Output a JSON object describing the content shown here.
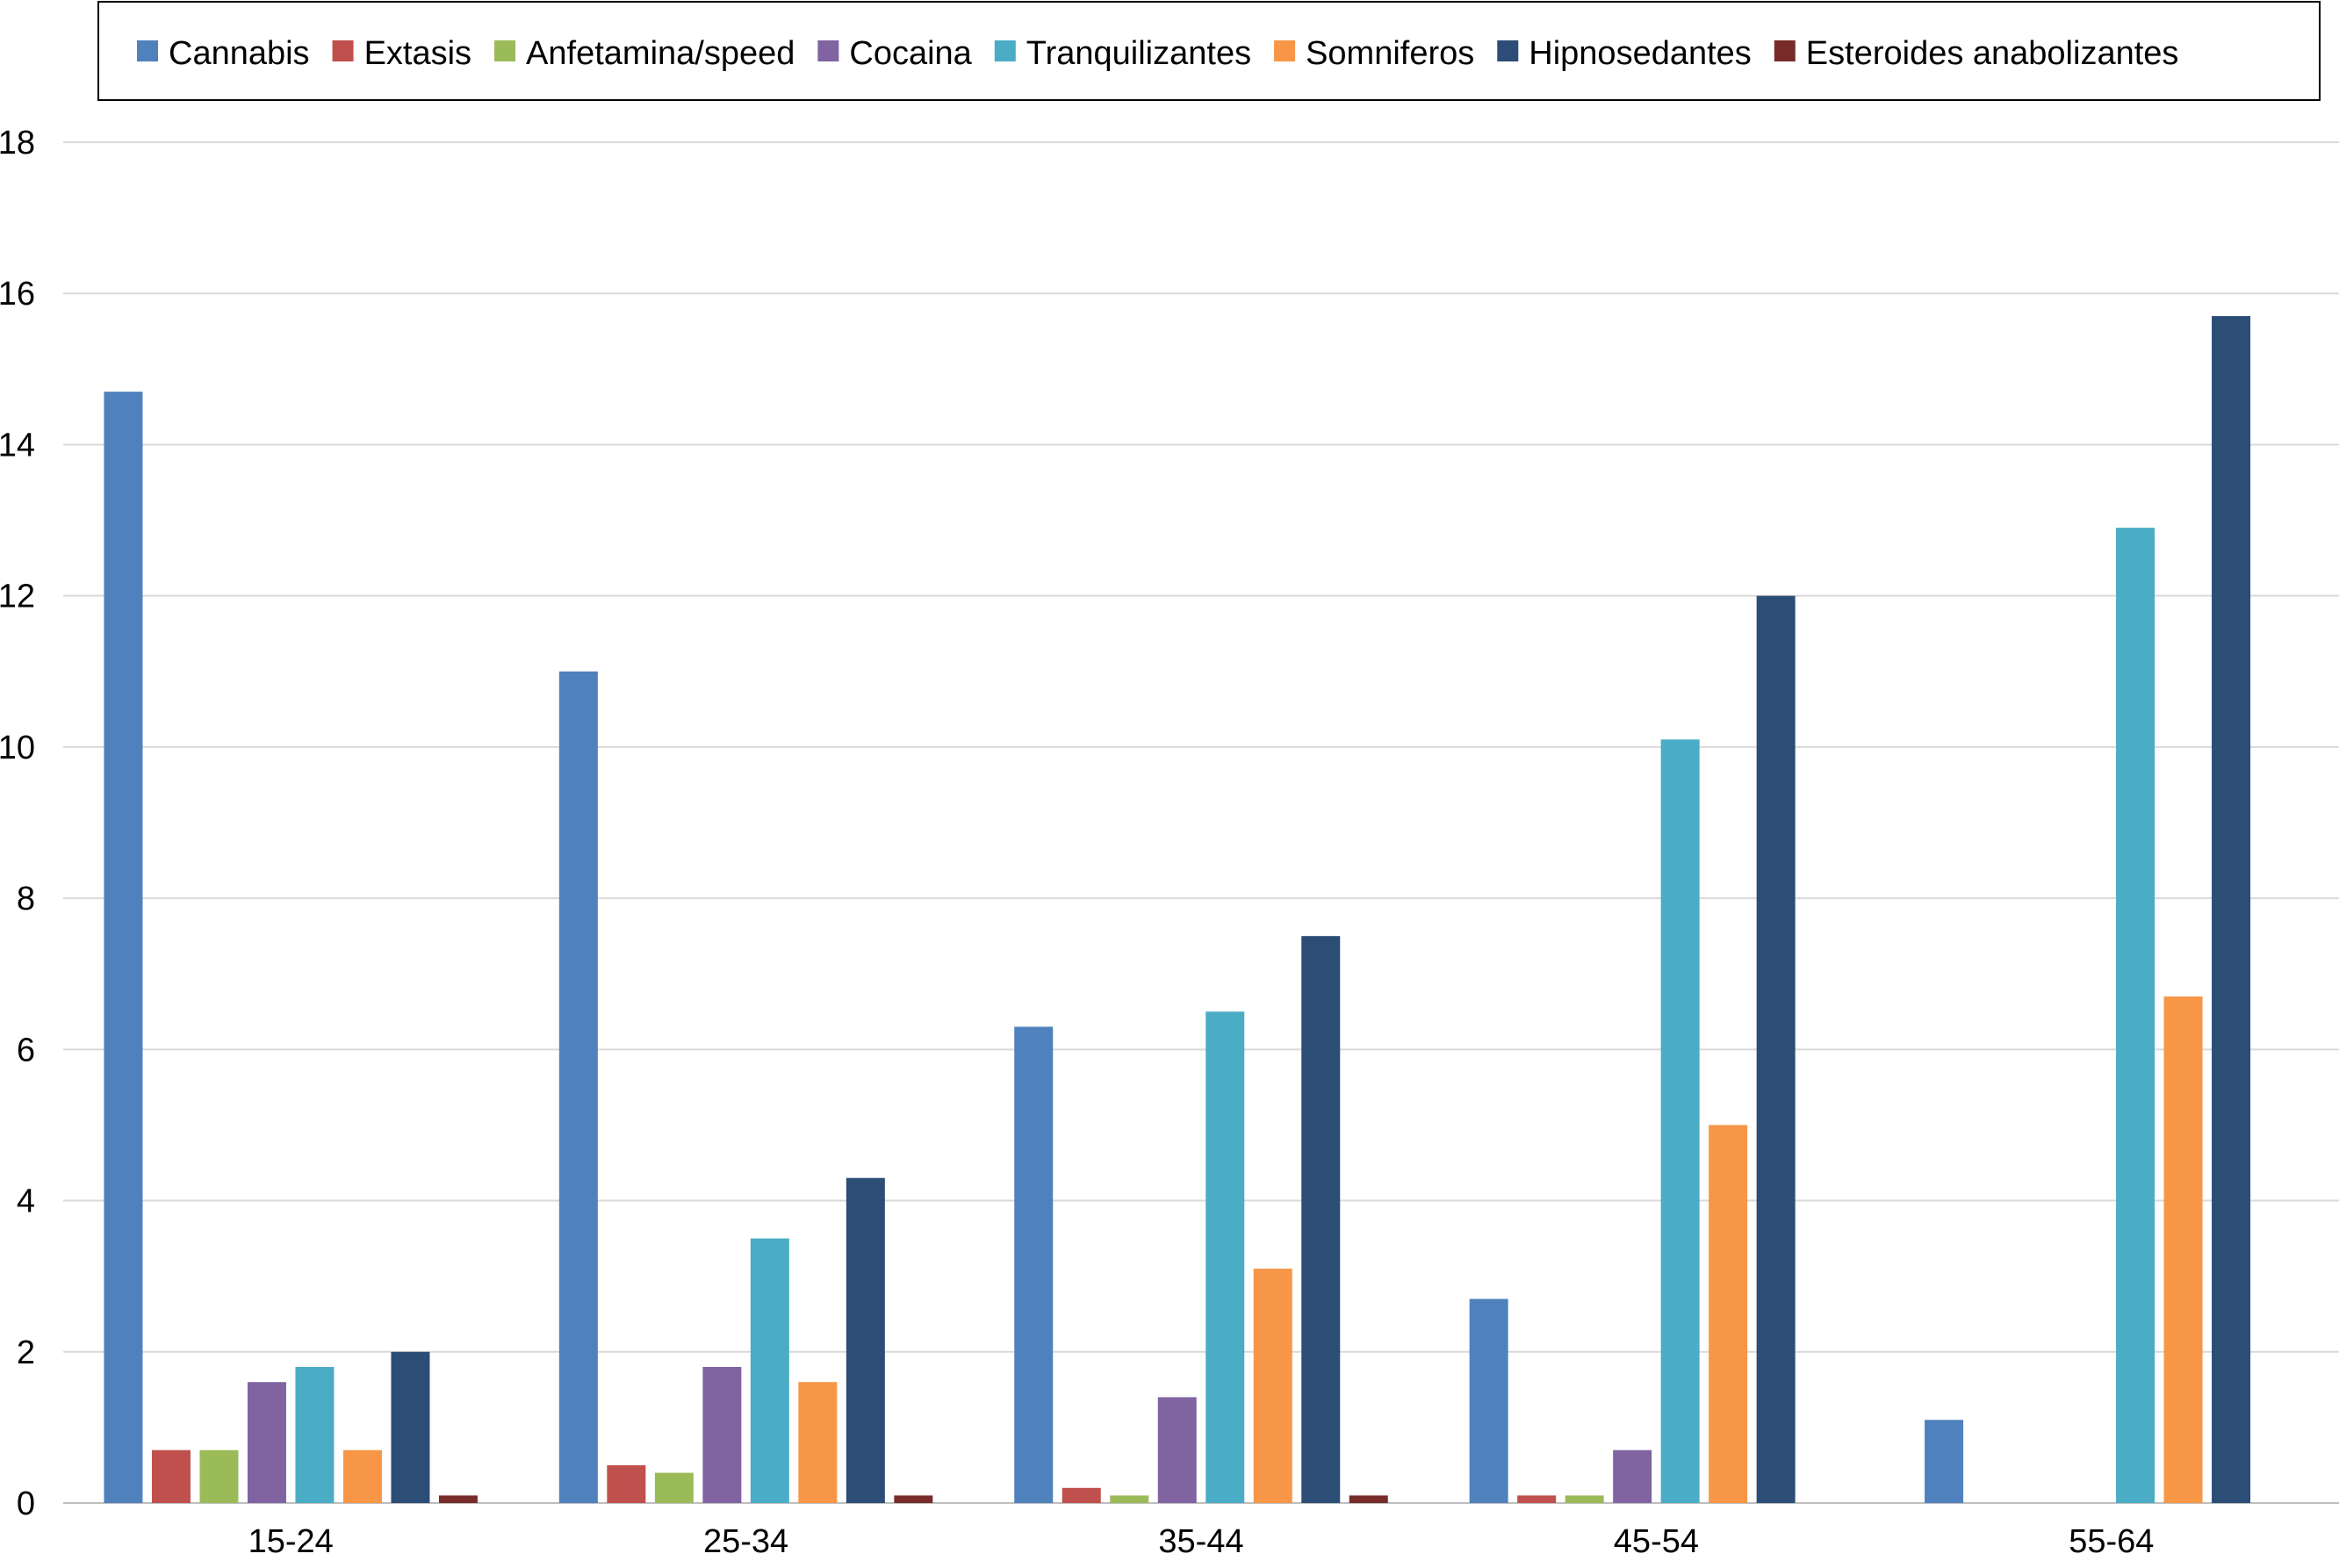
{
  "chart_data": {
    "type": "bar",
    "title": "",
    "xlabel": "",
    "ylabel": "",
    "ylim": [
      0,
      18
    ],
    "yticks": [
      0,
      2,
      4,
      6,
      8,
      10,
      12,
      14,
      16,
      18
    ],
    "grid": true,
    "legend_position": "top",
    "categories": [
      "15-24",
      "25-34",
      "35-44",
      "45-54",
      "55-64"
    ],
    "series": [
      {
        "name": "Cannabis",
        "color": "#4f81bd",
        "values": [
          14.7,
          11.0,
          6.3,
          2.7,
          1.1
        ]
      },
      {
        "name": "Extasis",
        "color": "#c0504d",
        "values": [
          0.7,
          0.5,
          0.2,
          0.1,
          0
        ]
      },
      {
        "name": "Anfetamina/speed",
        "color": "#9bbb59",
        "values": [
          0.7,
          0.4,
          0.1,
          0.1,
          0
        ]
      },
      {
        "name": "Cocaina",
        "color": "#8064a2",
        "values": [
          1.6,
          1.8,
          1.4,
          0.7,
          0
        ]
      },
      {
        "name": "Tranquilizantes",
        "color": "#4bacc6",
        "values": [
          1.8,
          3.5,
          6.5,
          10.1,
          12.9
        ]
      },
      {
        "name": "Somniferos",
        "color": "#f79646",
        "values": [
          0.7,
          1.6,
          3.1,
          5.0,
          6.7
        ]
      },
      {
        "name": "Hipnosedantes",
        "color": "#2c4d75",
        "values": [
          2.0,
          4.3,
          7.5,
          12.0,
          15.7
        ]
      },
      {
        "name": "Esteroides anabolizantes",
        "color": "#772c2a",
        "values": [
          0.1,
          0.1,
          0.1,
          0,
          0
        ]
      }
    ]
  }
}
